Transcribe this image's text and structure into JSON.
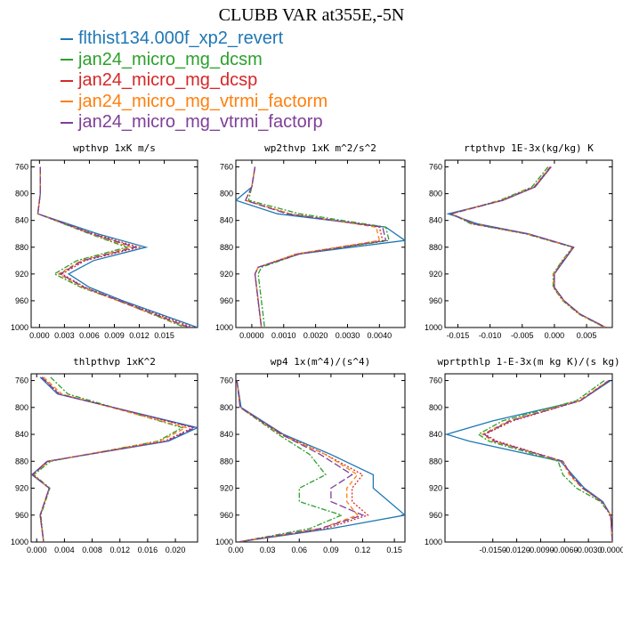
{
  "title": "CLUBB VAR at355E,-5N",
  "colors": [
    "#1f77b4",
    "#2ca02c",
    "#d62728",
    "#ff7f0e",
    "#7e3f98"
  ],
  "legend": [
    {
      "label": "flthist134.000f_xp2_revert",
      "color": "#1f77b4",
      "dash": "solid"
    },
    {
      "label": "jan24_micro_mg_dcsm",
      "color": "#2ca02c",
      "dash": "dashdot"
    },
    {
      "label": "jan24_micro_mg_dcsp",
      "color": "#d62728",
      "dash": "dot"
    },
    {
      "label": "jan24_micro_mg_vtrmi_factorm",
      "color": "#ff7f0e",
      "dash": "dashed"
    },
    {
      "label": "jan24_micro_mg_vtrmi_factorp",
      "color": "#7e3f98",
      "dash": "longdash"
    }
  ],
  "chart_data": [
    {
      "type": "line",
      "title": "wpthvp  1xK m/s",
      "xlim": [
        -0.001,
        0.019
      ],
      "xticks": [
        "0.000",
        "0.003",
        "0.006",
        "0.009",
        "0.012",
        "0.015"
      ],
      "xtick_values": [
        0,
        0.003,
        0.006,
        0.009,
        0.012,
        0.015
      ],
      "ylim": [
        750,
        1000
      ],
      "yticks": [
        "760",
        "800",
        "840",
        "880",
        "920",
        "960",
        "1000"
      ],
      "y": [
        760,
        800,
        830,
        860,
        880,
        900,
        920,
        940,
        960,
        1000
      ],
      "series": [
        {
          "name": "flthist134.000f_xp2_revert",
          "values": [
            0.0001,
            0.0001,
            -0.0002,
            0.007,
            0.0128,
            0.0065,
            0.0035,
            0.006,
            0.01,
            0.019
          ]
        },
        {
          "name": "jan24_micro_mg_dcsm",
          "values": [
            0.0001,
            0.0001,
            -0.0002,
            0.006,
            0.0105,
            0.0045,
            0.0018,
            0.005,
            0.0095,
            0.0175
          ]
        },
        {
          "name": "jan24_micro_mg_dcsp",
          "values": [
            0.0001,
            0.0001,
            -0.0002,
            0.0065,
            0.012,
            0.0055,
            0.0027,
            0.0055,
            0.0097,
            0.0185
          ]
        },
        {
          "name": "jan24_micro_mg_vtrmi_factorm",
          "values": [
            0.0001,
            0.0001,
            -0.0002,
            0.0062,
            0.011,
            0.005,
            0.0023,
            0.0052,
            0.0094,
            0.0178
          ]
        },
        {
          "name": "jan24_micro_mg_vtrmi_factorp",
          "values": [
            0.0001,
            0.0001,
            -0.0002,
            0.0063,
            0.0115,
            0.0052,
            0.0025,
            0.0054,
            0.0096,
            0.018
          ]
        }
      ]
    },
    {
      "type": "line",
      "title": "wp2thvp  1xK m^2/s^2",
      "xlim": [
        -0.0005,
        0.0048
      ],
      "xticks": [
        "0.0000",
        "0.0010",
        "0.0020",
        "0.0030",
        "0.0040"
      ],
      "xtick_values": [
        0,
        0.001,
        0.002,
        0.003,
        0.004
      ],
      "ylim": [
        750,
        1000
      ],
      "yticks": [
        "760",
        "800",
        "840",
        "880",
        "920",
        "960",
        "1000"
      ],
      "y": [
        760,
        790,
        810,
        830,
        850,
        870,
        890,
        910,
        920,
        960,
        1000
      ],
      "series": [
        {
          "name": "flthist134.000f_xp2_revert",
          "values": [
            0.0001,
            0.0,
            -0.0005,
            0.0008,
            0.0042,
            0.0048,
            0.0015,
            0.0002,
            0.0001,
            0.0002,
            0.0003
          ]
        },
        {
          "name": "jan24_micro_mg_dcsm",
          "values": [
            0.0001,
            0.0,
            -0.0001,
            0.0015,
            0.0042,
            0.0043,
            0.0015,
            0.0003,
            0.0002,
            0.0003,
            0.0004
          ]
        },
        {
          "name": "jan24_micro_mg_dcsp",
          "values": [
            0.0001,
            0.0,
            -0.0002,
            0.0012,
            0.004,
            0.0041,
            0.0014,
            0.0002,
            0.0001,
            0.0002,
            0.0003
          ]
        },
        {
          "name": "jan24_micro_mg_vtrmi_factorm",
          "values": [
            0.0001,
            0.0,
            -0.0002,
            0.0012,
            0.0039,
            0.004,
            0.0014,
            0.0002,
            0.0001,
            0.0002,
            0.0003
          ]
        },
        {
          "name": "jan24_micro_mg_vtrmi_factorp",
          "values": [
            0.0001,
            0.0,
            -0.0002,
            0.0011,
            0.0041,
            0.0042,
            0.0015,
            0.0002,
            0.0001,
            0.0002,
            0.0003
          ]
        }
      ]
    },
    {
      "type": "line",
      "title": "rtpthvp  1E-3x(kg/kg) K",
      "xlim": [
        -0.017,
        0.009
      ],
      "xticks": [
        "-0.015",
        "-0.010",
        "-0.005",
        "0.000",
        "0.005"
      ],
      "xtick_values": [
        -0.015,
        -0.01,
        -0.005,
        0,
        0.005
      ],
      "ylim": [
        750,
        1000
      ],
      "yticks": [
        "760",
        "800",
        "840",
        "880",
        "920",
        "960",
        "1000"
      ],
      "y": [
        760,
        790,
        810,
        830,
        845,
        860,
        880,
        900,
        920,
        940,
        960,
        980,
        1000
      ],
      "series": [
        {
          "name": "flthist134.000f_xp2_revert",
          "values": [
            -0.0005,
            -0.003,
            -0.008,
            -0.0165,
            -0.012,
            -0.004,
            0.003,
            0.0015,
            0.0,
            0.0,
            0.0015,
            0.004,
            0.008
          ]
        },
        {
          "name": "jan24_micro_mg_dcsm",
          "values": [
            -0.001,
            -0.0035,
            -0.0085,
            -0.016,
            -0.013,
            -0.0045,
            0.0028,
            0.0012,
            -0.0002,
            -0.0002,
            0.0013,
            0.0038,
            0.0078
          ]
        },
        {
          "name": "jan24_micro_mg_dcsp",
          "values": [
            -0.0005,
            -0.003,
            -0.008,
            -0.016,
            -0.0125,
            -0.0042,
            0.003,
            0.0014,
            0.0,
            0.0,
            0.0015,
            0.004,
            0.008
          ]
        },
        {
          "name": "jan24_micro_mg_vtrmi_factorm",
          "values": [
            -0.0007,
            -0.0032,
            -0.0082,
            -0.016,
            -0.0127,
            -0.0043,
            0.0029,
            0.0013,
            -0.0001,
            -0.0001,
            0.0014,
            0.0039,
            0.0079
          ]
        },
        {
          "name": "jan24_micro_mg_vtrmi_factorp",
          "values": [
            -0.0006,
            -0.0031,
            -0.0081,
            -0.016,
            -0.0126,
            -0.0042,
            0.003,
            0.0014,
            0.0,
            0.0,
            0.0015,
            0.004,
            0.008
          ]
        }
      ]
    },
    {
      "type": "line",
      "title": "thlpthvp  1xK^2",
      "xlim": [
        -0.0008,
        0.0232
      ],
      "xticks": [
        "0.000",
        "0.004",
        "0.008",
        "0.012",
        "0.016",
        "0.020"
      ],
      "xtick_values": [
        0,
        0.004,
        0.008,
        0.012,
        0.016,
        0.02
      ],
      "ylim": [
        750,
        1000
      ],
      "yticks": [
        "760",
        "800",
        "840",
        "880",
        "920",
        "960",
        "1000"
      ],
      "y": [
        755,
        780,
        830,
        850,
        880,
        900,
        920,
        960,
        1000
      ],
      "series": [
        {
          "name": "flthist134.000f_xp2_revert",
          "values": [
            0.0005,
            0.003,
            0.0232,
            0.019,
            0.0015,
            -0.0007,
            0.0018,
            0.0005,
            0.001
          ]
        },
        {
          "name": "jan24_micro_mg_dcsm",
          "values": [
            0.002,
            0.0045,
            0.021,
            0.0175,
            0.002,
            -0.0004,
            0.0019,
            0.0006,
            0.001
          ]
        },
        {
          "name": "jan24_micro_mg_dcsp",
          "values": [
            0.0008,
            0.0033,
            0.0225,
            0.0185,
            0.0015,
            -0.0006,
            0.0018,
            0.0005,
            0.001
          ]
        },
        {
          "name": "jan24_micro_mg_vtrmi_factorm",
          "values": [
            0.001,
            0.0036,
            0.0215,
            0.0178,
            0.0017,
            -0.0005,
            0.0018,
            0.0005,
            0.001
          ]
        },
        {
          "name": "jan24_micro_mg_vtrmi_factorp",
          "values": [
            0.0007,
            0.0032,
            0.0228,
            0.0188,
            0.0016,
            -0.0006,
            0.0018,
            0.0005,
            0.001
          ]
        }
      ]
    },
    {
      "type": "line",
      "title": "wp4  1x(m^4)/(s^4)",
      "xlim": [
        0,
        0.16
      ],
      "xticks": [
        "0.00",
        "0.03",
        "0.06",
        "0.09",
        "0.12",
        "0.15"
      ],
      "xtick_values": [
        0,
        0.03,
        0.06,
        0.09,
        0.12,
        0.15
      ],
      "ylim": [
        750,
        1000
      ],
      "yticks": [
        "760",
        "800",
        "840",
        "880",
        "920",
        "960",
        "1000"
      ],
      "y": [
        760,
        800,
        840,
        870,
        900,
        920,
        940,
        960,
        980,
        1000
      ],
      "series": [
        {
          "name": "flthist134.000f_xp2_revert",
          "values": [
            0.001,
            0.005,
            0.045,
            0.09,
            0.13,
            0.13,
            0.145,
            0.16,
            0.09,
            0.002
          ]
        },
        {
          "name": "jan24_micro_mg_dcsm",
          "values": [
            0.001,
            0.004,
            0.04,
            0.07,
            0.085,
            0.06,
            0.06,
            0.1,
            0.07,
            0.002
          ]
        },
        {
          "name": "jan24_micro_mg_dcsp",
          "values": [
            0.001,
            0.004,
            0.044,
            0.085,
            0.12,
            0.11,
            0.11,
            0.125,
            0.085,
            0.002
          ]
        },
        {
          "name": "jan24_micro_mg_vtrmi_factorm",
          "values": [
            0.001,
            0.004,
            0.042,
            0.085,
            0.115,
            0.105,
            0.105,
            0.115,
            0.08,
            0.002
          ]
        },
        {
          "name": "jan24_micro_mg_vtrmi_factorp",
          "values": [
            0.001,
            0.004,
            0.043,
            0.08,
            0.11,
            0.09,
            0.09,
            0.12,
            0.08,
            0.002
          ]
        }
      ]
    },
    {
      "type": "line",
      "title": "wprtpthlp  1-E-3x(m kg K)/(s kg)",
      "xlim": [
        -0.021,
        0
      ],
      "xticks": [
        "-0.0150",
        "-0.0120",
        "-0.0090",
        "-0.0060",
        "-0.0030",
        "0.0000"
      ],
      "xtick_values": [
        -0.015,
        -0.012,
        -0.009,
        -0.006,
        -0.003,
        0
      ],
      "ylim": [
        750,
        1000
      ],
      "yticks": [
        "760",
        "800",
        "840",
        "880",
        "920",
        "960",
        "1000"
      ],
      "y": [
        760,
        790,
        820,
        840,
        850,
        880,
        900,
        920,
        940,
        960,
        1000
      ],
      "series": [
        {
          "name": "flthist134.000f_xp2_revert",
          "values": [
            -0.0002,
            -0.004,
            -0.015,
            -0.0208,
            -0.018,
            -0.0065,
            -0.005,
            -0.0035,
            -0.0012,
            -0.0002,
            0.0
          ]
        },
        {
          "name": "jan24_micro_mg_dcsm",
          "values": [
            -0.001,
            -0.0045,
            -0.0138,
            -0.0168,
            -0.0155,
            -0.0068,
            -0.0062,
            -0.0045,
            -0.0015,
            -0.0002,
            0.0
          ]
        },
        {
          "name": "jan24_micro_mg_dcsp",
          "values": [
            -0.0004,
            -0.004,
            -0.0125,
            -0.016,
            -0.0145,
            -0.0062,
            -0.0052,
            -0.0037,
            -0.0013,
            -0.0002,
            0.0
          ]
        },
        {
          "name": "jan24_micro_mg_vtrmi_factorm",
          "values": [
            -0.0005,
            -0.0042,
            -0.013,
            -0.0163,
            -0.015,
            -0.0063,
            -0.0054,
            -0.0038,
            -0.0013,
            -0.0002,
            0.0
          ]
        },
        {
          "name": "jan24_micro_mg_vtrmi_factorp",
          "values": [
            -0.0004,
            -0.004,
            -0.0128,
            -0.0161,
            -0.0148,
            -0.0062,
            -0.0052,
            -0.0037,
            -0.0013,
            -0.0002,
            0.0
          ]
        }
      ]
    }
  ]
}
